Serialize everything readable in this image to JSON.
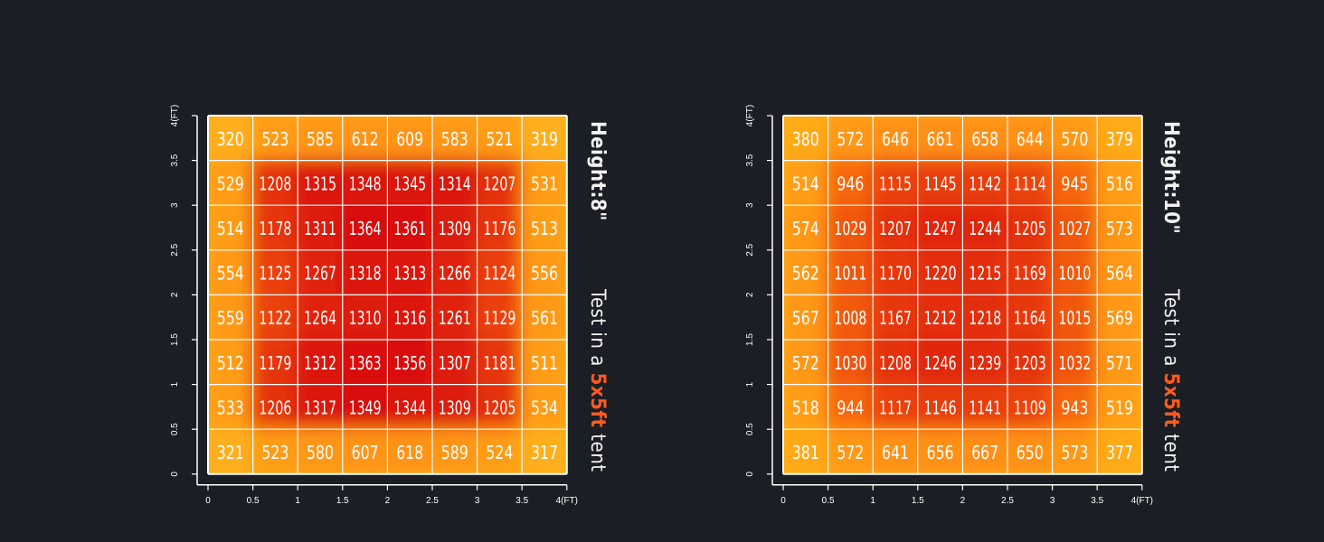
{
  "chart_data": [
    {
      "type": "heatmap",
      "height_label": "Height:8\"",
      "test_prefix": "Test in a ",
      "test_accent": "5x5ft",
      "test_suffix": " tent",
      "x_ticks": [
        "0",
        "0.5",
        "1",
        "1.5",
        "2",
        "2.5",
        "3",
        "3.5",
        "4(FT)"
      ],
      "y_ticks": [
        "0",
        "0.5",
        "1",
        "1.5",
        "2",
        "2.5",
        "3",
        "3.5",
        "4(FT)"
      ],
      "xlim": [
        0,
        4
      ],
      "ylim": [
        0,
        4
      ],
      "grid": true,
      "values": [
        [
          320,
          523,
          585,
          612,
          609,
          583,
          521,
          319
        ],
        [
          529,
          1208,
          1315,
          1348,
          1345,
          1314,
          1207,
          531
        ],
        [
          514,
          1178,
          1311,
          1364,
          1361,
          1309,
          1176,
          513
        ],
        [
          554,
          1125,
          1267,
          1318,
          1313,
          1266,
          1124,
          556
        ],
        [
          559,
          1122,
          1264,
          1310,
          1316,
          1261,
          1129,
          561
        ],
        [
          512,
          1179,
          1312,
          1363,
          1356,
          1307,
          1181,
          511
        ],
        [
          533,
          1206,
          1317,
          1349,
          1344,
          1309,
          1205,
          534
        ],
        [
          321,
          523,
          580,
          607,
          618,
          589,
          524,
          317
        ]
      ]
    },
    {
      "type": "heatmap",
      "height_label": "Height:10\"",
      "test_prefix": "Test in a ",
      "test_accent": "5x5ft",
      "test_suffix": " tent",
      "x_ticks": [
        "0",
        "0.5",
        "1",
        "1.5",
        "2",
        "2.5",
        "3",
        "3.5",
        "4(FT)"
      ],
      "y_ticks": [
        "0",
        "0.5",
        "1",
        "1.5",
        "2",
        "2.5",
        "3",
        "3.5",
        "4(FT)"
      ],
      "xlim": [
        0,
        4
      ],
      "ylim": [
        0,
        4
      ],
      "grid": true,
      "values": [
        [
          380,
          572,
          646,
          661,
          658,
          644,
          570,
          379
        ],
        [
          514,
          946,
          1115,
          1145,
          1142,
          1114,
          945,
          516
        ],
        [
          574,
          1029,
          1207,
          1247,
          1244,
          1205,
          1027,
          573
        ],
        [
          562,
          1011,
          1170,
          1220,
          1215,
          1169,
          1010,
          564
        ],
        [
          567,
          1008,
          1167,
          1212,
          1218,
          1164,
          1015,
          569
        ],
        [
          572,
          1030,
          1208,
          1246,
          1239,
          1203,
          1032,
          571
        ],
        [
          518,
          944,
          1117,
          1146,
          1141,
          1109,
          943,
          519
        ],
        [
          381,
          572,
          641,
          656,
          667,
          650,
          573,
          377
        ]
      ]
    }
  ],
  "colors": {
    "background": "#1b1e24",
    "low": "#ffb11a",
    "mid": "#ff7f10",
    "high": "#d80d0d",
    "accent": "#ff5a1f",
    "text": "#f2f2f2"
  }
}
